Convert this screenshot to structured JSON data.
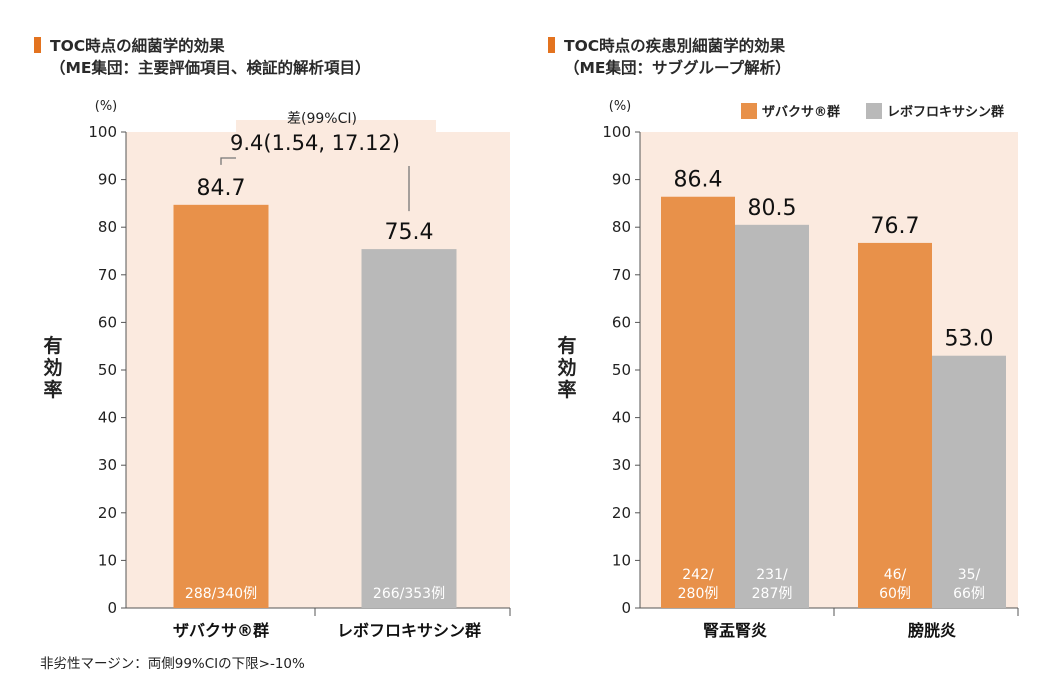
{
  "left_panel": {
    "title_line1": "TOC時点の細菌学的効果",
    "title_line2": "（ME集団：主要評価項目、検証的解析項目）"
  },
  "right_panel": {
    "title_line1": "TOC時点の疾患別細菌学的効果",
    "title_line2": "（ME集団：サブグループ解析）"
  },
  "footnote": "非劣性マージン：両側99%CIの下限>-10%",
  "colors": {
    "orange": "#e8914a",
    "gray": "#b9b9b9",
    "bg": "#fbeadf",
    "accent": "#e3731f"
  },
  "chart_data": [
    {
      "type": "bar",
      "ylabel": "有効率",
      "y_unit": "(%)",
      "ylim": [
        0,
        100
      ],
      "yticks": [
        0,
        10,
        20,
        30,
        40,
        50,
        60,
        70,
        80,
        90,
        100
      ],
      "categories": [
        "ザバクサ®群",
        "レボフロキサシン群"
      ],
      "values": [
        84.7,
        75.4
      ],
      "value_labels": [
        "84.7",
        "75.4"
      ],
      "counts": [
        "288/340例",
        "266/353例"
      ],
      "bar_colors": [
        "orange",
        "gray"
      ],
      "difference": {
        "label": "差(99%CI)",
        "value": "9.4(1.54, 17.12)"
      }
    },
    {
      "type": "bar",
      "ylabel": "有効率",
      "y_unit": "(%)",
      "ylim": [
        0,
        100
      ],
      "yticks": [
        0,
        10,
        20,
        30,
        40,
        50,
        60,
        70,
        80,
        90,
        100
      ],
      "categories": [
        "腎盂腎炎",
        "膀胱炎"
      ],
      "legend": [
        "ザバクサ®群",
        "レボフロキサシン群"
      ],
      "series": [
        {
          "name": "ザバクサ®群",
          "values": [
            86.4,
            76.7
          ],
          "labels": [
            "86.4",
            "76.7"
          ],
          "counts": [
            [
              "242/",
              "280例"
            ],
            [
              "46/",
              "60例"
            ]
          ]
        },
        {
          "name": "レボフロキサシン群",
          "values": [
            80.5,
            53.0
          ],
          "labels": [
            "80.5",
            "53.0"
          ],
          "counts": [
            [
              "231/",
              "287例"
            ],
            [
              "35/",
              "66例"
            ]
          ]
        }
      ]
    }
  ]
}
